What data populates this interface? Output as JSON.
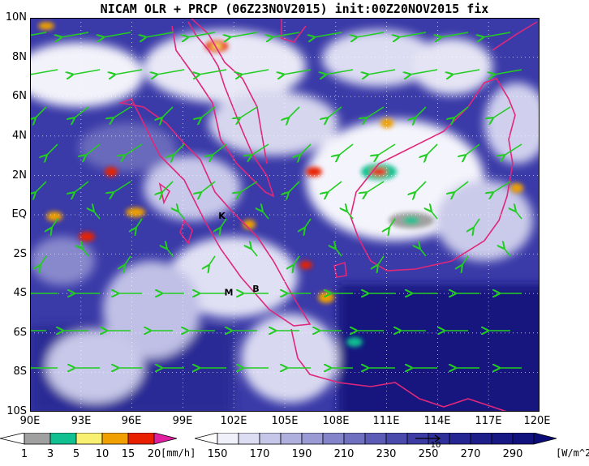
{
  "title": "NICAM OLR + PRCP (06Z23NOV2015) init:00Z20NOV2015 fix",
  "colors": {
    "olr_dark": "#1c1c8e",
    "olr_mid": "#5a5ab4",
    "olr_light": "#d8d8f0",
    "coast": "#e0287a",
    "wind": "#22cc22",
    "prcp_gray": "#a0a0a0",
    "prcp_green": "#10c090",
    "prcp_yellow": "#f8f070",
    "prcp_orange": "#f0a000",
    "prcp_red": "#e82000",
    "prcp_magenta": "#e020a0"
  },
  "map": {
    "lat_labels": [
      "10N",
      "8N",
      "6N",
      "4N",
      "2N",
      "EQ",
      "2S",
      "4S",
      "6S",
      "8S",
      "10S"
    ],
    "lon_labels": [
      "90E",
      "93E",
      "96E",
      "99E",
      "102E",
      "105E",
      "108E",
      "111E",
      "114E",
      "117E",
      "120E"
    ],
    "lon_range": [
      90,
      120
    ],
    "lat_range": [
      -10,
      10
    ],
    "markers": [
      {
        "label": "K",
        "lon": 101.3,
        "lat": -0.2
      },
      {
        "label": "M",
        "lon": 101.7,
        "lat": -4.1
      },
      {
        "label": "B",
        "lon": 103.3,
        "lat": -3.9
      }
    ],
    "wind_vector_icon": "arrow-icon"
  },
  "legend_prcp": {
    "ticks": [
      "1",
      "3",
      "5",
      "10",
      "15",
      "20"
    ],
    "unit": "[mm/h]"
  },
  "legend_olr": {
    "ticks": [
      "150",
      "170",
      "190",
      "210",
      "230",
      "250",
      "270",
      "290"
    ],
    "unit": "[W/m^2]",
    "ref_vector_label": "10"
  }
}
